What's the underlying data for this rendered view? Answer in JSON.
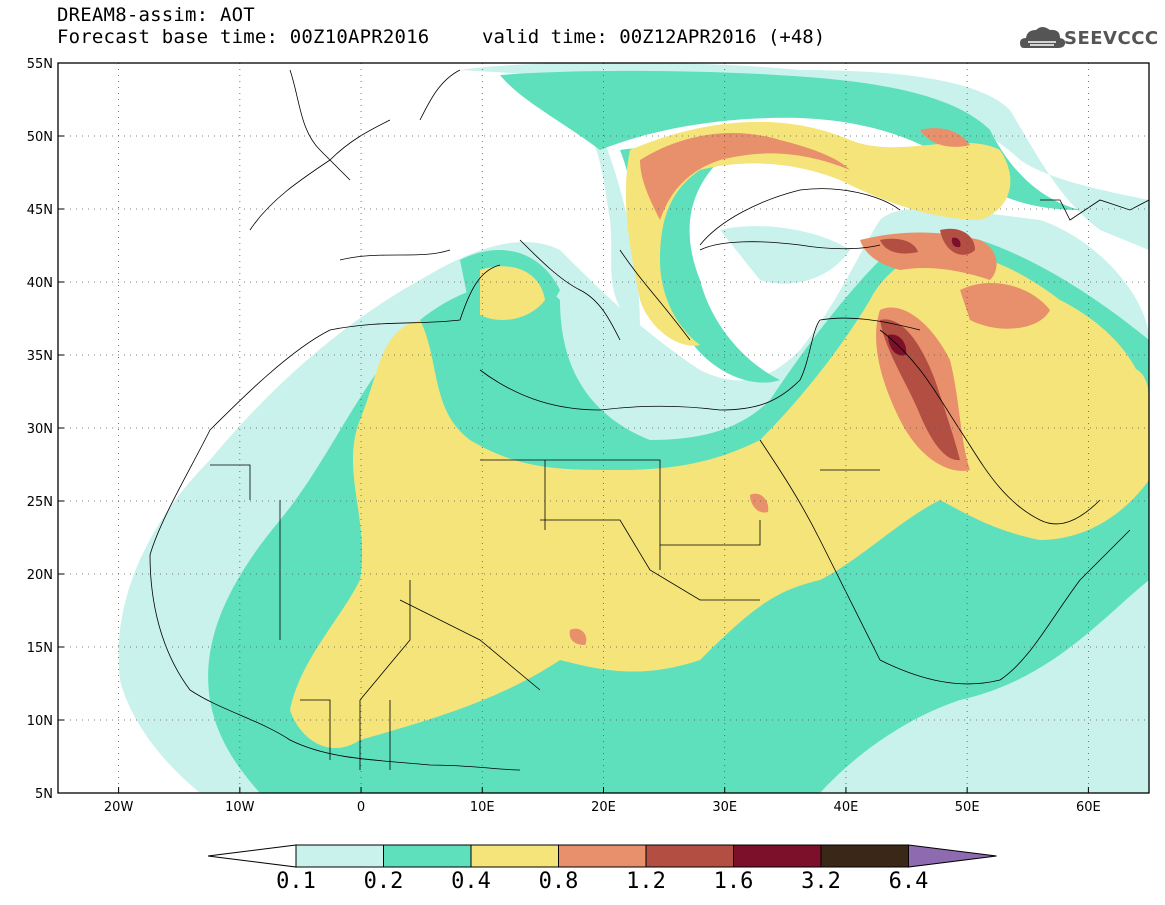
{
  "header": {
    "title_line1": "DREAM8-assim: AOT",
    "title_line2": "Forecast base time: 00Z10APR2016",
    "valid_text": "valid time: 00Z12APR2016 (+48)",
    "logo_text": "SEEVCCC"
  },
  "map": {
    "lon_range": [
      -25,
      65
    ],
    "lat_range": [
      5,
      55
    ],
    "gridlines": "dotted",
    "lat_labels": [
      "5N",
      "10N",
      "15N",
      "20N",
      "25N",
      "30N",
      "35N",
      "40N",
      "45N",
      "50N",
      "55N"
    ],
    "lat_values": [
      5,
      10,
      15,
      20,
      25,
      30,
      35,
      40,
      45,
      50,
      55
    ],
    "lon_labels": [
      "20W",
      "10W",
      "0",
      "10E",
      "20E",
      "30E",
      "40E",
      "50E",
      "60E"
    ],
    "lon_values": [
      -20,
      -10,
      0,
      10,
      20,
      30,
      40,
      50,
      60
    ]
  },
  "colorbar": {
    "labels": [
      "0.1",
      "0.2",
      "0.4",
      "0.8",
      "1.2",
      "1.6",
      "3.2",
      "6.4"
    ],
    "colors": [
      "#ffffff",
      "#c9f2ec",
      "#5fe0bd",
      "#f5e47a",
      "#e88f6b",
      "#b24f42",
      "#7c0f2a",
      "#3b2718",
      "#8e6bb0"
    ]
  },
  "colors": {
    "c1": "#c9f2ec",
    "c2": "#5fe0bd",
    "c3": "#f5e47a",
    "c4": "#e88f6b",
    "c5": "#b24f42",
    "c6": "#7c0f2a"
  }
}
